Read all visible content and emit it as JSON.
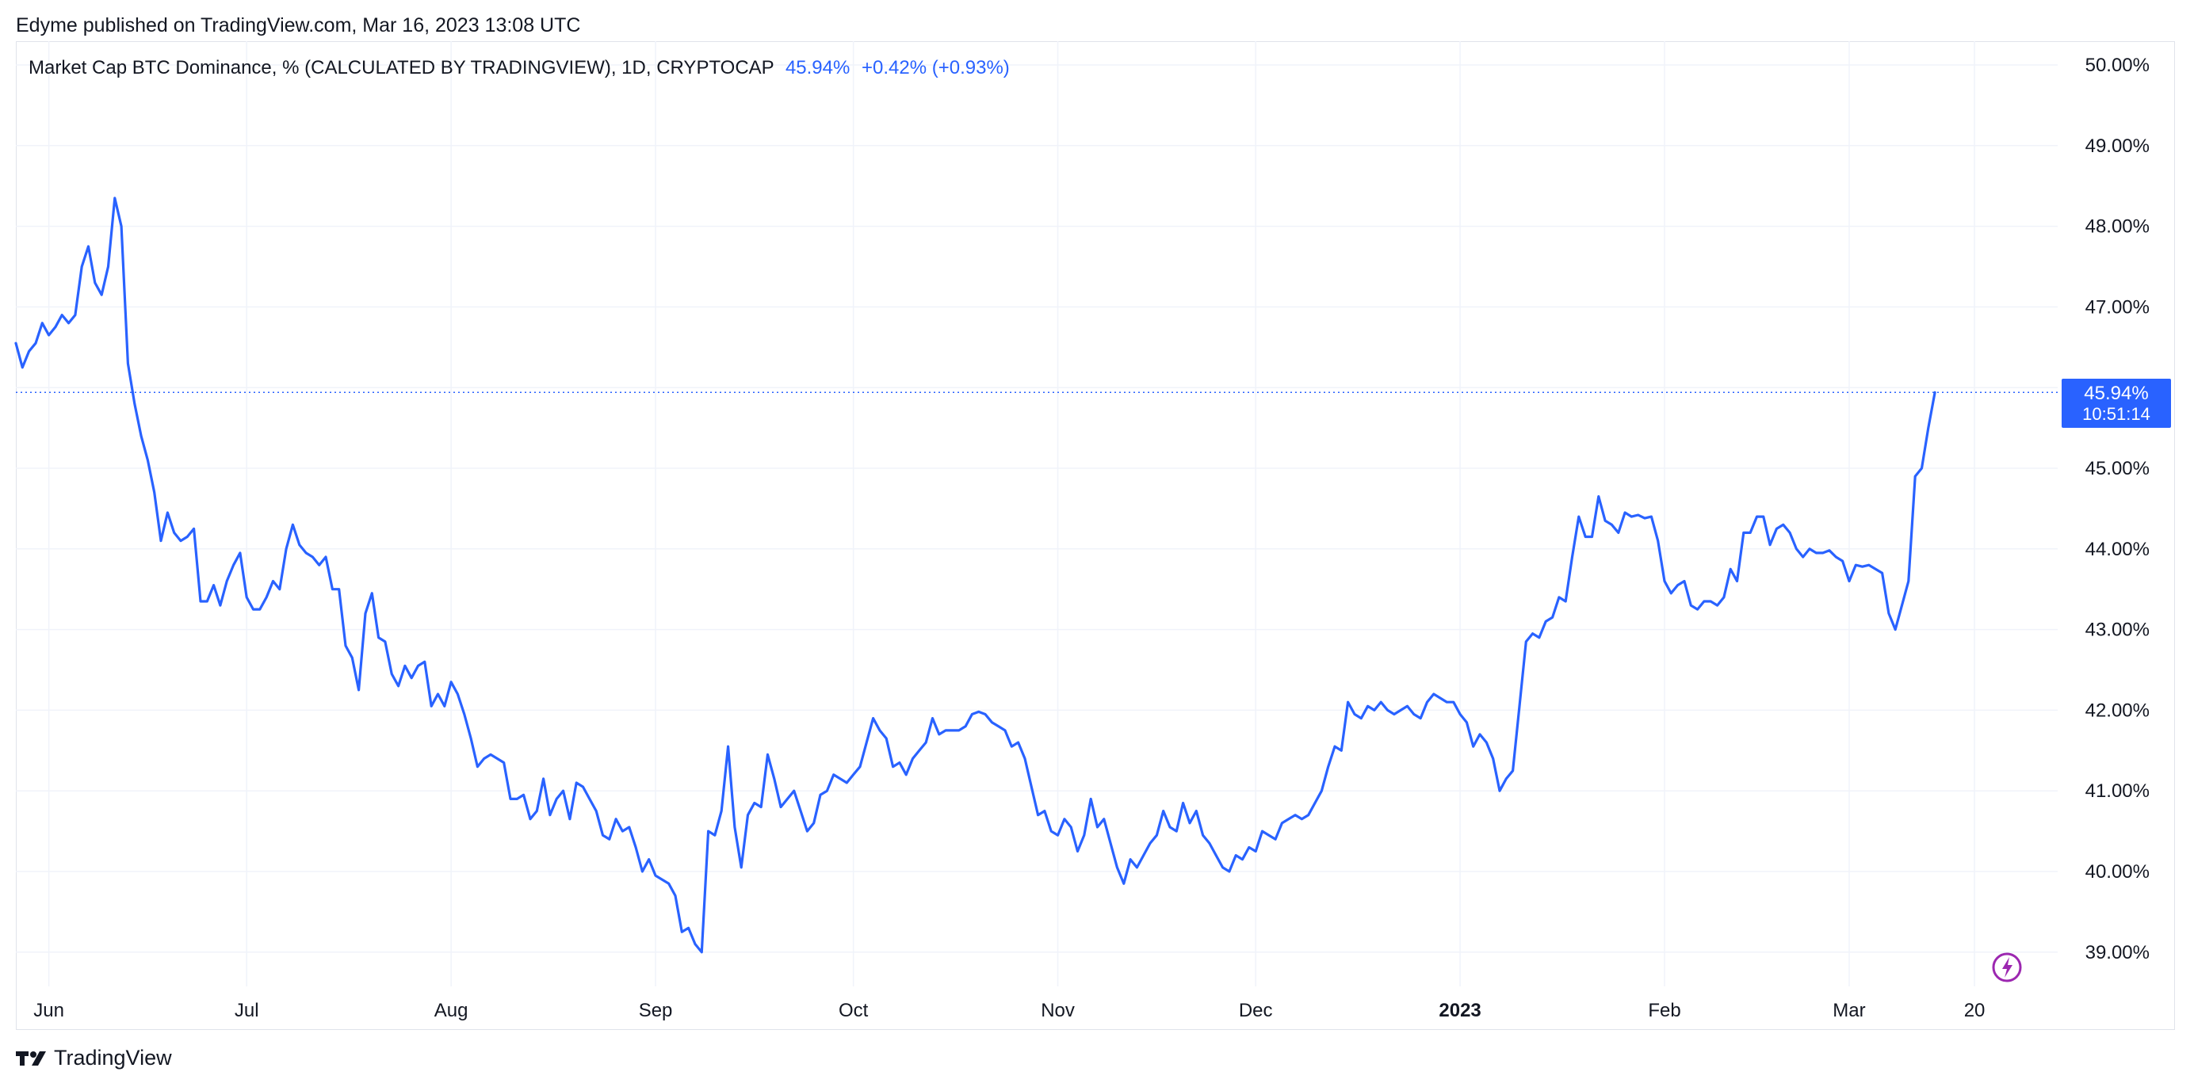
{
  "header": {
    "published": "Edyme published on TradingView.com, Mar 16, 2023 13:08 UTC"
  },
  "legend": {
    "symbol": "Market Cap BTC Dominance, % (CALCULATED BY TRADINGVIEW), 1D, CRYPTOCAP",
    "value": "45.94%",
    "change": "+0.42% (+0.93%)"
  },
  "price_tag": {
    "value": "45.94%",
    "countdown": "10:51:14"
  },
  "footer": {
    "brand": "TradingView",
    "logo_icon": "tradingview-logo-icon"
  },
  "colors": {
    "line": "#2962ff",
    "grid": "#f0f3fa",
    "text": "#131722",
    "tag_bg": "#2962ff",
    "flash_icon": "#9c27b0"
  },
  "chart_data": {
    "type": "line",
    "title": "Market Cap BTC Dominance, % (CALCULATED BY TRADINGVIEW), 1D, CRYPTOCAP",
    "xlabel": "",
    "ylabel": "",
    "ylim": [
      38.5,
      50.3
    ],
    "yticks": [
      "50.00%",
      "49.00%",
      "48.00%",
      "47.00%",
      "46.00%",
      "45.00%",
      "44.00%",
      "43.00%",
      "42.00%",
      "41.00%",
      "40.00%",
      "39.00%"
    ],
    "ytick_values": [
      50,
      49,
      48,
      47,
      46,
      45,
      44,
      43,
      42,
      41,
      40,
      39
    ],
    "xticks": [
      {
        "label": "Jun",
        "day": 5,
        "bold": false
      },
      {
        "label": "Jul",
        "day": 35,
        "bold": false
      },
      {
        "label": "Aug",
        "day": 66,
        "bold": false
      },
      {
        "label": "Sep",
        "day": 97,
        "bold": false
      },
      {
        "label": "Oct",
        "day": 127,
        "bold": false
      },
      {
        "label": "Nov",
        "day": 158,
        "bold": false
      },
      {
        "label": "Dec",
        "day": 188,
        "bold": false
      },
      {
        "label": "2023",
        "day": 219,
        "bold": true
      },
      {
        "label": "Feb",
        "day": 250,
        "bold": false
      },
      {
        "label": "Mar",
        "day": 278,
        "bold": false
      },
      {
        "label": "20",
        "day": 297,
        "bold": false
      }
    ],
    "grid": true,
    "last_value_line": 45.94,
    "x_start": "2022-05-31",
    "x_end": "2023-03-16",
    "y": [
      46.55,
      46.25,
      46.45,
      46.55,
      46.8,
      46.65,
      46.75,
      46.9,
      46.8,
      46.9,
      47.5,
      47.75,
      47.3,
      47.15,
      47.5,
      48.35,
      48.0,
      46.3,
      45.8,
      45.4,
      45.1,
      44.7,
      44.1,
      44.45,
      44.2,
      44.1,
      44.15,
      44.25,
      43.35,
      43.35,
      43.55,
      43.3,
      43.6,
      43.8,
      43.95,
      43.4,
      43.25,
      43.25,
      43.4,
      43.6,
      43.5,
      44.0,
      44.3,
      44.05,
      43.95,
      43.9,
      43.8,
      43.9,
      43.5,
      43.5,
      42.8,
      42.65,
      42.25,
      43.2,
      43.45,
      42.9,
      42.85,
      42.45,
      42.3,
      42.55,
      42.4,
      42.55,
      42.6,
      42.05,
      42.2,
      42.05,
      42.35,
      42.2,
      41.95,
      41.65,
      41.3,
      41.4,
      41.45,
      41.4,
      41.35,
      40.9,
      40.9,
      40.95,
      40.65,
      40.75,
      41.15,
      40.7,
      40.9,
      41.0,
      40.65,
      41.1,
      41.05,
      40.9,
      40.75,
      40.45,
      40.4,
      40.65,
      40.5,
      40.55,
      40.3,
      40.0,
      40.15,
      39.95,
      39.9,
      39.85,
      39.7,
      39.25,
      39.3,
      39.1,
      39.0,
      40.5,
      40.45,
      40.75,
      41.55,
      40.55,
      40.05,
      40.7,
      40.85,
      40.8,
      41.45,
      41.15,
      40.8,
      40.9,
      41.0,
      40.75,
      40.5,
      40.6,
      40.95,
      41.0,
      41.2,
      41.15,
      41.1,
      41.2,
      41.3,
      41.6,
      41.9,
      41.75,
      41.65,
      41.3,
      41.35,
      41.2,
      41.4,
      41.5,
      41.6,
      41.9,
      41.7,
      41.75,
      41.75,
      41.75,
      41.8,
      41.95,
      41.98,
      41.95,
      41.85,
      41.8,
      41.75,
      41.55,
      41.6,
      41.4,
      41.05,
      40.7,
      40.75,
      40.5,
      40.45,
      40.65,
      40.55,
      40.25,
      40.45,
      40.9,
      40.55,
      40.65,
      40.35,
      40.05,
      39.85,
      40.15,
      40.05,
      40.2,
      40.35,
      40.45,
      40.75,
      40.55,
      40.5,
      40.85,
      40.6,
      40.75,
      40.45,
      40.35,
      40.2,
      40.05,
      40.0,
      40.2,
      40.15,
      40.3,
      40.25,
      40.5,
      40.45,
      40.4,
      40.6,
      40.65,
      40.7,
      40.65,
      40.7,
      40.85,
      41.0,
      41.3,
      41.55,
      41.5,
      42.1,
      41.95,
      41.9,
      42.05,
      42.0,
      42.1,
      42.0,
      41.95,
      42.0,
      42.05,
      41.95,
      41.9,
      42.1,
      42.2,
      42.15,
      42.1,
      42.1,
      41.95,
      41.85,
      41.55,
      41.7,
      41.6,
      41.4,
      41.0,
      41.15,
      41.25,
      42.05,
      42.85,
      42.95,
      42.9,
      43.1,
      43.15,
      43.4,
      43.35,
      43.9,
      44.4,
      44.15,
      44.15,
      44.65,
      44.35,
      44.3,
      44.2,
      44.45,
      44.4,
      44.42,
      44.38,
      44.4,
      44.1,
      43.6,
      43.45,
      43.55,
      43.6,
      43.3,
      43.25,
      43.35,
      43.35,
      43.3,
      43.4,
      43.75,
      43.6,
      44.2,
      44.2,
      44.4,
      44.4,
      44.05,
      44.25,
      44.3,
      44.2,
      44.0,
      43.9,
      44.0,
      43.95,
      43.95,
      43.98,
      43.9,
      43.85,
      43.6,
      43.8,
      43.78,
      43.8,
      43.75,
      43.7,
      43.2,
      43.0,
      43.3,
      43.6,
      44.9,
      45.0,
      45.5,
      45.94
    ]
  }
}
